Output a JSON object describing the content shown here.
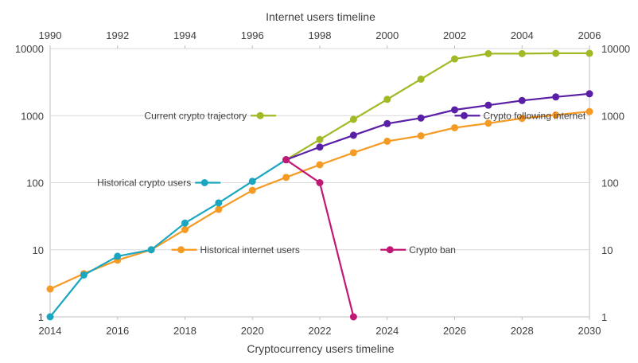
{
  "chart_data": {
    "type": "line",
    "title": "Internet users timeline",
    "xlabel": "Cryptocurrency users timeline",
    "top_axis_label": "Internet users timeline",
    "x_bottom": {
      "min": 2014,
      "max": 2030,
      "ticks": [
        2014,
        2016,
        2018,
        2020,
        2022,
        2024,
        2026,
        2028,
        2030
      ]
    },
    "x_top": {
      "min": 1990,
      "max": 2006,
      "ticks": [
        1990,
        1992,
        1994,
        1996,
        1998,
        2000,
        2002,
        2004,
        2006
      ]
    },
    "y": {
      "scale": "log",
      "min": 1,
      "max": 10000,
      "ticks": [
        1,
        10,
        100,
        1000,
        10000
      ],
      "tick_labels": [
        "1",
        "10",
        "100",
        "1000",
        "10000"
      ]
    },
    "y_right": {
      "scale": "log",
      "ticks": [
        1,
        10,
        100,
        1000,
        10000
      ],
      "tick_labels": [
        "1",
        "10",
        "100",
        "1000",
        "10000"
      ]
    },
    "grid": true,
    "series": [
      {
        "name": "Historical internet users",
        "color": "#f59a23",
        "points": [
          [
            2014,
            2.6
          ],
          [
            2015,
            4.4
          ],
          [
            2016,
            7
          ],
          [
            2017,
            10
          ],
          [
            2018,
            20
          ],
          [
            2019,
            40
          ],
          [
            2020,
            77
          ],
          [
            2021,
            120
          ],
          [
            2022,
            185
          ],
          [
            2023,
            280
          ],
          [
            2024,
            415
          ],
          [
            2025,
            500
          ],
          [
            2026,
            660
          ],
          [
            2027,
            770
          ],
          [
            2028,
            910
          ],
          [
            2029,
            1020
          ],
          [
            2030,
            1150
          ]
        ]
      },
      {
        "name": "Historical crypto users",
        "color": "#1aa6c0",
        "points": [
          [
            2014,
            1
          ],
          [
            2015,
            4.2
          ],
          [
            2016,
            8
          ],
          [
            2017,
            10
          ],
          [
            2018,
            25
          ],
          [
            2019,
            50
          ],
          [
            2020,
            105
          ],
          [
            2021,
            220
          ]
        ]
      },
      {
        "name": "Current crypto trajectory",
        "color": "#a2b925",
        "points": [
          [
            2021,
            220
          ],
          [
            2022,
            440
          ],
          [
            2023,
            880
          ],
          [
            2024,
            1750
          ],
          [
            2025,
            3500
          ],
          [
            2026,
            7000
          ],
          [
            2027,
            8400
          ],
          [
            2028,
            8400
          ],
          [
            2029,
            8500
          ],
          [
            2030,
            8500
          ]
        ]
      },
      {
        "name": "Crypto following internet",
        "color": "#5a1fa7",
        "points": [
          [
            2021,
            220
          ],
          [
            2022,
            340
          ],
          [
            2023,
            510
          ],
          [
            2024,
            760
          ],
          [
            2025,
            920
          ],
          [
            2026,
            1220
          ],
          [
            2027,
            1430
          ],
          [
            2028,
            1680
          ],
          [
            2029,
            1900
          ],
          [
            2030,
            2120
          ]
        ]
      },
      {
        "name": "Crypto ban",
        "color": "#c21875",
        "points": [
          [
            2021,
            220
          ],
          [
            2022,
            100
          ],
          [
            2023,
            1
          ]
        ]
      }
    ],
    "legend_entries": [
      {
        "series": "Current crypto trajectory",
        "anchor": [
          2019.95,
          1000
        ],
        "text_side": "left"
      },
      {
        "series": "Crypto following internet",
        "anchor": [
          2026,
          1000
        ],
        "text_side": "right"
      },
      {
        "series": "Historical crypto users",
        "anchor": [
          2018.3,
          100
        ],
        "text_side": "left"
      },
      {
        "series": "Historical internet users",
        "anchor": [
          2017.6,
          10
        ],
        "text_side": "right"
      },
      {
        "series": "Crypto ban",
        "anchor": [
          2023.8,
          10
        ],
        "text_side": "right"
      }
    ]
  }
}
